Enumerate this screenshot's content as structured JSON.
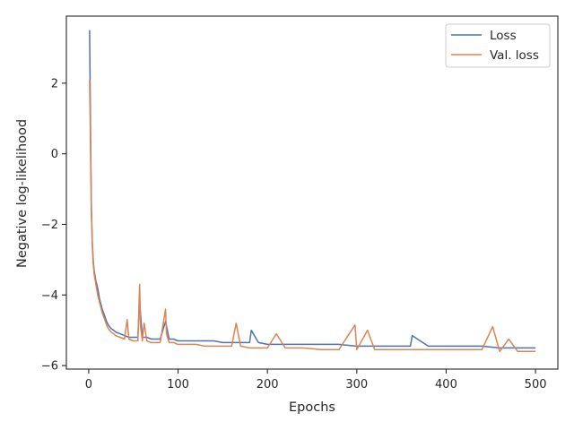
{
  "chart_data": {
    "type": "line",
    "title": "",
    "xlabel": "Epochs",
    "ylabel": "Negative log-likelihood",
    "xlim": [
      -25,
      525
    ],
    "ylim": [
      -6.1,
      3.9
    ],
    "x_ticks": [
      0,
      100,
      200,
      300,
      400,
      500
    ],
    "y_ticks": [
      -6,
      -4,
      -2,
      0,
      2
    ],
    "grid": false,
    "legend_position": "top-right",
    "series": [
      {
        "name": "Loss",
        "color": "#4c72b0",
        "x": [
          1,
          2,
          3,
          4,
          5,
          6,
          8,
          10,
          12,
          15,
          18,
          20,
          22,
          25,
          28,
          30,
          35,
          40,
          45,
          50,
          55,
          57,
          60,
          65,
          70,
          75,
          80,
          86,
          90,
          95,
          100,
          110,
          120,
          130,
          140,
          150,
          160,
          170,
          180,
          182,
          190,
          200,
          220,
          240,
          260,
          280,
          300,
          320,
          340,
          360,
          362,
          380,
          400,
          420,
          440,
          460,
          480,
          500
        ],
        "y": [
          3.5,
          0.8,
          -1.5,
          -2.5,
          -3.0,
          -3.3,
          -3.6,
          -3.8,
          -4.1,
          -4.4,
          -4.6,
          -4.75,
          -4.85,
          -4.95,
          -5.0,
          -5.05,
          -5.1,
          -5.15,
          -5.2,
          -5.2,
          -5.2,
          -4.2,
          -5.2,
          -5.2,
          -5.25,
          -5.25,
          -5.25,
          -4.75,
          -5.25,
          -5.25,
          -5.3,
          -5.3,
          -5.3,
          -5.3,
          -5.3,
          -5.35,
          -5.35,
          -5.35,
          -5.35,
          -5.0,
          -5.35,
          -5.4,
          -5.4,
          -5.4,
          -5.4,
          -5.4,
          -5.45,
          -5.45,
          -5.45,
          -5.45,
          -5.15,
          -5.45,
          -5.45,
          -5.45,
          -5.45,
          -5.5,
          -5.5,
          -5.5
        ]
      },
      {
        "name": "Val. loss",
        "color": "#dd8452",
        "x": [
          1,
          2,
          3,
          4,
          5,
          6,
          8,
          10,
          12,
          15,
          18,
          20,
          22,
          25,
          28,
          30,
          35,
          40,
          43,
          45,
          50,
          55,
          57,
          58,
          60,
          62,
          65,
          70,
          75,
          80,
          86,
          87,
          90,
          95,
          100,
          110,
          120,
          130,
          140,
          150,
          160,
          165,
          170,
          180,
          190,
          200,
          210,
          220,
          240,
          260,
          280,
          298,
          300,
          312,
          320,
          340,
          360,
          380,
          400,
          420,
          440,
          452,
          460,
          470,
          480,
          500
        ],
        "y": [
          2.1,
          0.2,
          -1.7,
          -2.6,
          -3.1,
          -3.4,
          -3.7,
          -4.0,
          -4.2,
          -4.5,
          -4.7,
          -4.85,
          -4.95,
          -5.05,
          -5.1,
          -5.15,
          -5.2,
          -5.25,
          -4.7,
          -5.25,
          -5.3,
          -5.3,
          -3.7,
          -4.9,
          -5.3,
          -4.8,
          -5.3,
          -5.35,
          -5.35,
          -5.35,
          -4.4,
          -5.1,
          -5.35,
          -5.35,
          -5.4,
          -5.4,
          -5.4,
          -5.45,
          -5.45,
          -5.45,
          -5.45,
          -4.8,
          -5.45,
          -5.5,
          -5.5,
          -5.5,
          -5.1,
          -5.5,
          -5.5,
          -5.55,
          -5.55,
          -4.85,
          -5.55,
          -5.0,
          -5.55,
          -5.55,
          -5.55,
          -5.55,
          -5.55,
          -5.55,
          -5.55,
          -4.9,
          -5.6,
          -5.25,
          -5.6,
          -5.6
        ]
      }
    ]
  }
}
